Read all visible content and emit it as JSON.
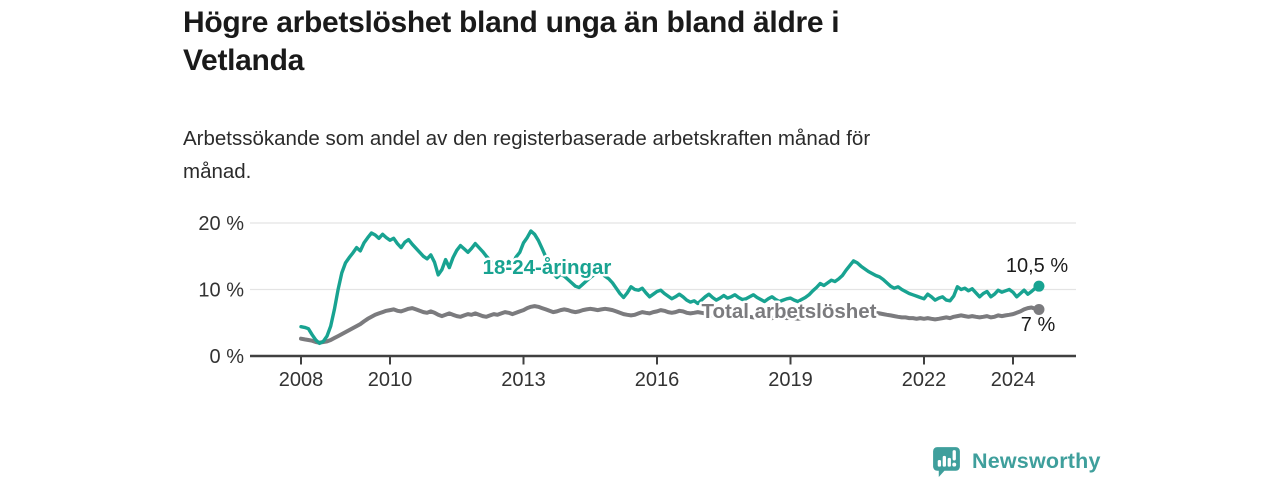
{
  "header": {
    "title_line1": "Högre arbetslöshet bland unga än bland äldre i",
    "title_line2": "Vetlanda",
    "subtitle_line1": "Arbetssökande som andel av den registerbaserade arbetskraften månad för",
    "subtitle_line2": "månad."
  },
  "brand": {
    "name": "Newsworthy",
    "color": "#3f9f9c",
    "icon": "bar-chart-speech-bubble-icon"
  },
  "chart_data": {
    "type": "line",
    "title": "Högre arbetslöshet bland unga än bland äldre i Vetlanda",
    "subtitle": "Arbetssökande som andel av den registerbaserade arbetskraften månad för månad.",
    "unit": "%",
    "grid": "horizontal",
    "legend_position": "inline-labels",
    "x_axis": {
      "start_year": 2008,
      "end_point": "2024-08",
      "months_per_point": 1,
      "ticks": [
        {
          "year": 2008,
          "label": "2008"
        },
        {
          "year": 2010,
          "label": "2010"
        },
        {
          "year": 2013,
          "label": "2013"
        },
        {
          "year": 2016,
          "label": "2016"
        },
        {
          "year": 2019,
          "label": "2019"
        },
        {
          "year": 2022,
          "label": "2022"
        },
        {
          "year": 2024,
          "label": "2024"
        }
      ]
    },
    "y_axis": {
      "range": [
        0,
        22
      ],
      "ticks": [
        {
          "value": 0,
          "label": "0 %"
        },
        {
          "value": 10,
          "label": "10 %"
        },
        {
          "value": 20,
          "label": "20 %"
        }
      ]
    },
    "series": [
      {
        "name": "18-24-åringar",
        "color": "#18a391",
        "end_label": "10,5 %",
        "last_value": 10.5,
        "values": [
          4.4,
          4.3,
          4.1,
          3.2,
          2.4,
          1.9,
          2.2,
          3.0,
          4.5,
          7.0,
          10.0,
          12.5,
          14.0,
          14.8,
          15.5,
          16.3,
          15.8,
          17.0,
          17.8,
          18.5,
          18.2,
          17.7,
          18.3,
          17.8,
          17.4,
          17.7,
          16.9,
          16.3,
          17.1,
          17.5,
          16.8,
          16.2,
          15.6,
          15.0,
          14.6,
          15.2,
          14.1,
          12.2,
          13.0,
          14.5,
          13.3,
          14.8,
          15.9,
          16.6,
          16.1,
          15.6,
          16.2,
          16.9,
          16.3,
          15.7,
          15.0,
          14.4,
          13.8,
          13.3,
          12.9,
          13.5,
          14.2,
          13.7,
          14.9,
          15.6,
          17.0,
          17.8,
          18.8,
          18.3,
          17.4,
          16.2,
          14.9,
          13.6,
          12.4,
          11.8,
          12.3,
          12.0,
          11.5,
          11.0,
          10.5,
          10.3,
          10.8,
          11.3,
          11.8,
          12.2,
          12.5,
          12.4,
          12.0,
          11.6,
          11.0,
          10.2,
          9.4,
          8.8,
          9.5,
          10.4,
          10.0,
          9.9,
          10.2,
          9.5,
          8.9,
          9.3,
          9.7,
          9.9,
          9.4,
          9.0,
          8.6,
          8.9,
          9.3,
          8.9,
          8.4,
          8.1,
          8.3,
          7.9,
          8.4,
          8.9,
          9.3,
          8.8,
          8.4,
          8.7,
          9.1,
          8.7,
          8.9,
          9.2,
          8.8,
          8.5,
          8.6,
          8.9,
          9.2,
          8.8,
          8.5,
          8.2,
          8.6,
          8.9,
          8.5,
          8.2,
          8.4,
          8.6,
          8.7,
          8.4,
          8.2,
          8.5,
          8.8,
          9.2,
          9.8,
          10.3,
          10.9,
          10.6,
          11.0,
          11.4,
          11.2,
          11.6,
          12.1,
          12.9,
          13.6,
          14.3,
          14.0,
          13.5,
          13.1,
          12.7,
          12.4,
          12.1,
          11.9,
          11.5,
          11.0,
          10.5,
          10.2,
          10.4,
          10.0,
          9.7,
          9.4,
          9.2,
          9.0,
          8.8,
          8.6,
          9.3,
          8.9,
          8.4,
          8.7,
          8.9,
          8.4,
          8.3,
          9.0,
          10.4,
          10.0,
          10.2,
          9.8,
          10.1,
          9.5,
          8.9,
          9.4,
          9.7,
          8.9,
          9.3,
          9.9,
          9.6,
          9.8,
          10.0,
          9.6,
          8.9,
          9.4,
          9.9,
          9.3,
          9.7,
          10.2,
          10.5
        ]
      },
      {
        "name": "Total arbetslöshet",
        "color": "#7b7b7e",
        "end_label": "7 %",
        "last_value": 7.0,
        "values": [
          2.6,
          2.5,
          2.4,
          2.3,
          2.1,
          2.0,
          2.1,
          2.2,
          2.4,
          2.7,
          3.0,
          3.3,
          3.6,
          3.9,
          4.2,
          4.5,
          4.8,
          5.2,
          5.6,
          5.9,
          6.2,
          6.4,
          6.6,
          6.8,
          6.9,
          7.0,
          6.8,
          6.7,
          6.9,
          7.1,
          7.2,
          7.0,
          6.8,
          6.6,
          6.5,
          6.7,
          6.5,
          6.2,
          6.0,
          6.2,
          6.4,
          6.2,
          6.0,
          5.9,
          6.1,
          6.3,
          6.2,
          6.4,
          6.2,
          6.0,
          5.9,
          6.1,
          6.3,
          6.2,
          6.4,
          6.6,
          6.5,
          6.3,
          6.5,
          6.7,
          6.9,
          7.2,
          7.4,
          7.5,
          7.4,
          7.2,
          7.0,
          6.8,
          6.6,
          6.7,
          6.9,
          7.0,
          6.9,
          6.7,
          6.6,
          6.7,
          6.9,
          7.0,
          7.1,
          7.0,
          6.9,
          7.0,
          7.1,
          7.0,
          6.9,
          6.7,
          6.5,
          6.3,
          6.2,
          6.1,
          6.2,
          6.4,
          6.6,
          6.5,
          6.4,
          6.6,
          6.7,
          6.9,
          6.8,
          6.6,
          6.5,
          6.6,
          6.8,
          6.7,
          6.5,
          6.4,
          6.5,
          6.6,
          6.5,
          6.4,
          6.2,
          6.1,
          6.0,
          6.1,
          6.2,
          6.1,
          6.0,
          5.9,
          6.0,
          6.1,
          6.0,
          5.9,
          5.8,
          5.9,
          6.0,
          5.9,
          5.8,
          5.7,
          5.8,
          5.9,
          5.8,
          5.7,
          5.8,
          5.7,
          5.6,
          5.7,
          5.8,
          5.9,
          6.0,
          6.1,
          6.2,
          6.3,
          6.4,
          6.5,
          6.5,
          6.6,
          6.8,
          6.9,
          7.0,
          7.1,
          7.0,
          6.9,
          6.8,
          6.7,
          6.6,
          6.5,
          6.4,
          6.3,
          6.2,
          6.1,
          6.0,
          5.9,
          5.8,
          5.8,
          5.7,
          5.7,
          5.6,
          5.7,
          5.6,
          5.7,
          5.6,
          5.5,
          5.6,
          5.7,
          5.8,
          5.7,
          5.9,
          6.0,
          6.1,
          6.0,
          5.9,
          6.0,
          5.9,
          5.8,
          5.9,
          6.0,
          5.8,
          5.9,
          6.1,
          6.0,
          6.1,
          6.2,
          6.3,
          6.5,
          6.7,
          7.0,
          7.2,
          7.3,
          7.1,
          7.0
        ]
      }
    ]
  }
}
